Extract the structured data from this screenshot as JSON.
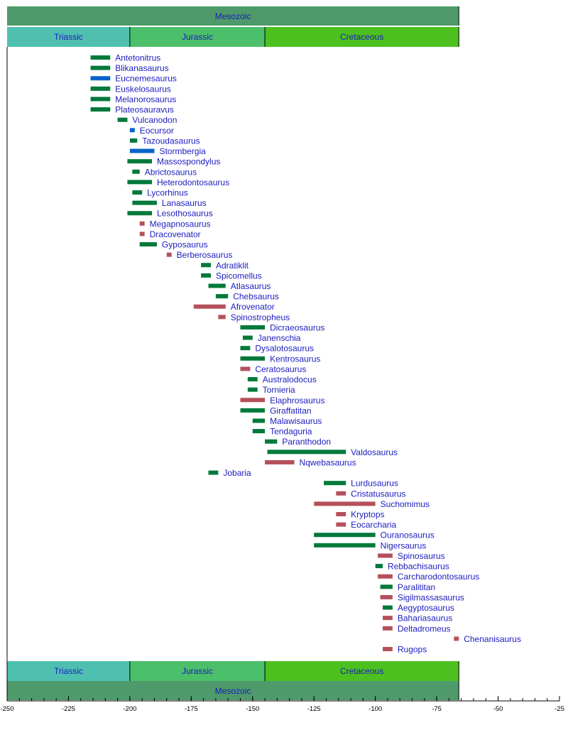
{
  "chart_data": {
    "type": "timeline",
    "xlim": [
      -250,
      -25
    ],
    "x_ticks": [
      -250,
      -225,
      -200,
      -175,
      -150,
      -125,
      -100,
      -75,
      -50,
      -25
    ],
    "x_tick_labels": [
      "-250",
      "-225",
      "-200",
      "-175",
      "-150",
      "-125",
      "-100",
      "-75",
      "-50",
      "-25"
    ],
    "minor_tick_step": 5,
    "colors": {
      "green": "#00793a",
      "blue": "#0a62c9",
      "red": "#b5505a",
      "label": "#1c1cc0"
    },
    "eras": [
      {
        "name": "Mesozoic",
        "start": -250,
        "end": -66,
        "color": "#4e9a6a"
      }
    ],
    "periods": [
      {
        "name": "Triassic",
        "start": -250,
        "end": -200,
        "color": "#4fc0b0"
      },
      {
        "name": "Jurassic",
        "start": -200,
        "end": -145,
        "color": "#4cbf6a"
      },
      {
        "name": "Cretaceous",
        "start": -145,
        "end": -66,
        "color": "#4cc01e"
      }
    ],
    "taxa": [
      {
        "name": "Antetonitrus",
        "start": -216,
        "end": -208,
        "color": "green"
      },
      {
        "name": "Blikanasaurus",
        "start": -216,
        "end": -208,
        "color": "green"
      },
      {
        "name": "Eucnemesaurus",
        "start": -216,
        "end": -208,
        "color": "blue"
      },
      {
        "name": "Euskelosaurus",
        "start": -216,
        "end": -208,
        "color": "green"
      },
      {
        "name": "Melanorosaurus",
        "start": -216,
        "end": -208,
        "color": "green"
      },
      {
        "name": "Plateosauravus",
        "start": -216,
        "end": -208,
        "color": "green"
      },
      {
        "name": "Vulcanodon",
        "start": -205,
        "end": -201,
        "color": "green"
      },
      {
        "name": "Eocursor",
        "start": -200,
        "end": -198,
        "color": "blue"
      },
      {
        "name": "Tazoudasaurus",
        "start": -200,
        "end": -197,
        "color": "green"
      },
      {
        "name": "Stormbergia",
        "start": -200,
        "end": -190,
        "color": "blue"
      },
      {
        "name": "Massospondylus",
        "start": -201,
        "end": -191,
        "color": "green"
      },
      {
        "name": "Abrictosaurus",
        "start": -199,
        "end": -196,
        "color": "green"
      },
      {
        "name": "Heterodontosaurus",
        "start": -201,
        "end": -191,
        "color": "green"
      },
      {
        "name": "Lycorhinus",
        "start": -199,
        "end": -195,
        "color": "green"
      },
      {
        "name": "Lanasaurus",
        "start": -199,
        "end": -189,
        "color": "green"
      },
      {
        "name": "Lesothosaurus",
        "start": -201,
        "end": -191,
        "color": "green"
      },
      {
        "name": "Megapnosaurus",
        "start": -196,
        "end": -194,
        "color": "red"
      },
      {
        "name": "Dracovenator",
        "start": -196,
        "end": -194,
        "color": "red"
      },
      {
        "name": "Gyposaurus",
        "start": -196,
        "end": -189,
        "color": "green"
      },
      {
        "name": "Berberosaurus",
        "start": -185,
        "end": -183,
        "color": "red"
      },
      {
        "name": "Adratiklit",
        "start": -171,
        "end": -167,
        "color": "green"
      },
      {
        "name": "Spicomellus",
        "start": -171,
        "end": -167,
        "color": "green"
      },
      {
        "name": "Atlasaurus",
        "start": -168,
        "end": -161,
        "color": "green"
      },
      {
        "name": "Chebsaurus",
        "start": -165,
        "end": -160,
        "color": "green"
      },
      {
        "name": "Afrovenator",
        "start": -174,
        "end": -161,
        "color": "red"
      },
      {
        "name": "Spinostropheus",
        "start": -164,
        "end": -161,
        "color": "red"
      },
      {
        "name": "Dicraeosaurus",
        "start": -155,
        "end": -145,
        "color": "green"
      },
      {
        "name": "Janenschia",
        "start": -154,
        "end": -150,
        "color": "green"
      },
      {
        "name": "Dysalotosaurus",
        "start": -155,
        "end": -151,
        "color": "green"
      },
      {
        "name": "Kentrosaurus",
        "start": -155,
        "end": -145,
        "color": "green"
      },
      {
        "name": "Ceratosaurus",
        "start": -155,
        "end": -151,
        "color": "red"
      },
      {
        "name": "Australodocus",
        "start": -152,
        "end": -148,
        "color": "green"
      },
      {
        "name": "Tornieria",
        "start": -152,
        "end": -148,
        "color": "green"
      },
      {
        "name": "Elaphrosaurus",
        "start": -155,
        "end": -145,
        "color": "red"
      },
      {
        "name": "Giraffatitan",
        "start": -155,
        "end": -145,
        "color": "green"
      },
      {
        "name": "Malawisaurus",
        "start": -150,
        "end": -145,
        "color": "green"
      },
      {
        "name": "Tendaguria",
        "start": -150,
        "end": -145,
        "color": "green"
      },
      {
        "name": "Paranthodon",
        "start": -145,
        "end": -140,
        "color": "green"
      },
      {
        "name": "Valdosaurus",
        "start": -144,
        "end": -112,
        "color": "green"
      },
      {
        "name": "Nqwebasaurus",
        "start": -145,
        "end": -133,
        "color": "red"
      },
      {
        "name": "Jobaria",
        "start": -168,
        "end": -164,
        "color": "green"
      },
      {
        "name": "Lurdusaurus",
        "start": -121,
        "end": -112,
        "color": "green"
      },
      {
        "name": "Cristatusaurus",
        "start": -116,
        "end": -112,
        "color": "red"
      },
      {
        "name": "Suchomimus",
        "start": -125,
        "end": -100,
        "color": "red"
      },
      {
        "name": "Kryptops",
        "start": -116,
        "end": -112,
        "color": "red"
      },
      {
        "name": "Eocarcharia",
        "start": -116,
        "end": -112,
        "color": "red"
      },
      {
        "name": "Ouranosaurus",
        "start": -125,
        "end": -100,
        "color": "green"
      },
      {
        "name": "Nigersaurus",
        "start": -125,
        "end": -100,
        "color": "green"
      },
      {
        "name": "Spinosaurus",
        "start": -99,
        "end": -93,
        "color": "red"
      },
      {
        "name": "Rebbachisaurus",
        "start": -100,
        "end": -97,
        "color": "green"
      },
      {
        "name": "Carcharodontosaurus",
        "start": -99,
        "end": -93,
        "color": "red"
      },
      {
        "name": "Paralititan",
        "start": -98,
        "end": -93,
        "color": "green"
      },
      {
        "name": "Sigilmassasaurus",
        "start": -98,
        "end": -93,
        "color": "red"
      },
      {
        "name": "Aegyptosaurus",
        "start": -97,
        "end": -93,
        "color": "green"
      },
      {
        "name": "Bahariasaurus",
        "start": -97,
        "end": -93,
        "color": "red"
      },
      {
        "name": "Deltadromeus",
        "start": -97,
        "end": -93,
        "color": "red"
      },
      {
        "name": "Chenanisaurus",
        "start": -68,
        "end": -66,
        "color": "red"
      },
      {
        "name": "Rugops",
        "start": -97,
        "end": -93,
        "color": "red"
      }
    ]
  }
}
